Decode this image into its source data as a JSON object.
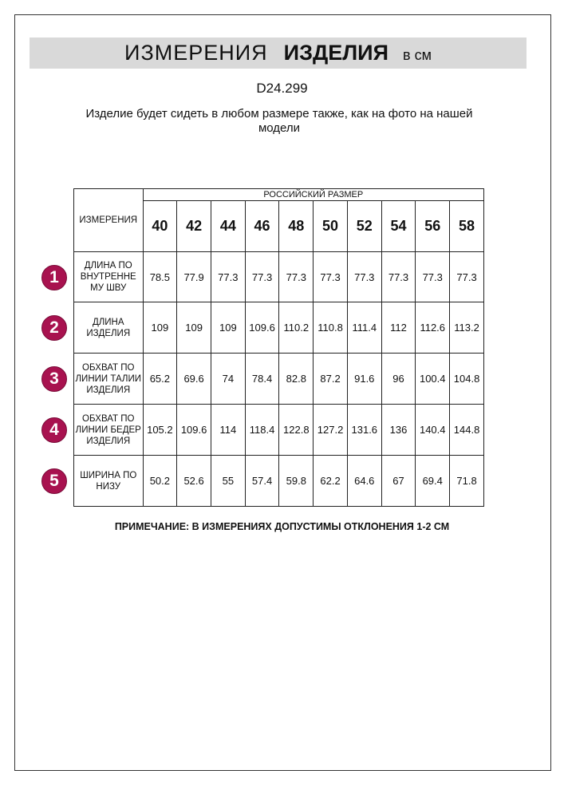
{
  "title": {
    "part1": "ИЗМЕРЕНИЯ",
    "part2": "ИЗДЕЛИЯ",
    "part3": "в см"
  },
  "code": "D24.299",
  "subtitle": "Изделие будет сидеть в любом размере также, как на фото на нашей модели",
  "table": {
    "corner": "ИЗМЕРЕНИЯ",
    "group_header": "РОССИЙСКИЙ РАЗМЕР",
    "sizes": [
      "40",
      "42",
      "44",
      "46",
      "48",
      "50",
      "52",
      "54",
      "56",
      "58"
    ],
    "rows": [
      {
        "num": "1",
        "label": "ДЛИНА ПО ВНУТРЕННЕ МУ ШВУ",
        "values": [
          "78.5",
          "77.9",
          "77.3",
          "77.3",
          "77.3",
          "77.3",
          "77.3",
          "77.3",
          "77.3",
          "77.3"
        ]
      },
      {
        "num": "2",
        "label": "ДЛИНА ИЗДЕЛИЯ",
        "values": [
          "109",
          "109",
          "109",
          "109.6",
          "110.2",
          "110.8",
          "111.4",
          "112",
          "112.6",
          "113.2"
        ]
      },
      {
        "num": "3",
        "label": "ОБХВАТ ПО ЛИНИИ ТАЛИИ ИЗДЕЛИЯ",
        "values": [
          "65.2",
          "69.6",
          "74",
          "78.4",
          "82.8",
          "87.2",
          "91.6",
          "96",
          "100.4",
          "104.8"
        ]
      },
      {
        "num": "4",
        "label": "ОБХВАТ ПО ЛИНИИ БЕДЕР ИЗДЕЛИЯ",
        "values": [
          "105.2",
          "109.6",
          "114",
          "118.4",
          "122.8",
          "127.2",
          "131.6",
          "136",
          "140.4",
          "144.8"
        ]
      },
      {
        "num": "5",
        "label": "ШИРИНА ПО НИЗУ",
        "values": [
          "50.2",
          "52.6",
          "55",
          "57.4",
          "59.8",
          "62.2",
          "64.6",
          "67",
          "69.4",
          "71.8"
        ]
      }
    ]
  },
  "note": "ПРИМЕЧАНИЕ: В ИЗМЕРЕНИЯХ ДОПУСТИМЫ ОТКЛОНЕНИЯ 1-2 СМ",
  "colors": {
    "badge": "#a8124f",
    "titlebar": "#d9d9d9"
  }
}
